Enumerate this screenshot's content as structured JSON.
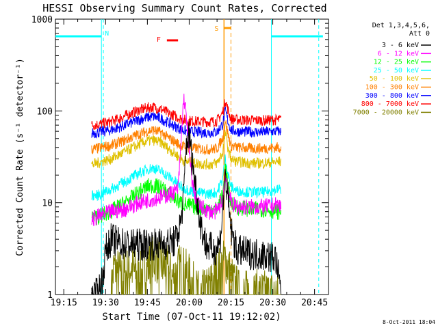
{
  "chart_data": {
    "type": "line",
    "title": "HESSI Observing Summary Count Rates, Corrected",
    "xlabel": "Start Time (07-Oct-11 19:12:02)",
    "ylabel": "Corrected Count Rate (s⁻¹ detector⁻¹)",
    "timestamp": "8-Oct-2011 18:04",
    "x_unit": "minutes after 19:12:02",
    "xlim": [
      0,
      98
    ],
    "ylim": [
      1,
      1000
    ],
    "y_scale": "log",
    "x_ticks": [
      {
        "x": 3,
        "label": "19:15"
      },
      {
        "x": 18,
        "label": "19:30"
      },
      {
        "x": 33,
        "label": "19:45"
      },
      {
        "x": 48,
        "label": "20:00"
      },
      {
        "x": 63,
        "label": "20:15"
      },
      {
        "x": 78,
        "label": "20:30"
      },
      {
        "x": 93,
        "label": "20:45"
      }
    ],
    "y_ticks": [
      {
        "y": 1,
        "label": "1"
      },
      {
        "y": 10,
        "label": "10"
      },
      {
        "y": 100,
        "label": "100"
      },
      {
        "y": 1000,
        "label": "1000"
      }
    ],
    "legend": {
      "position": "right",
      "header": [
        "Det 1,3,4,5,6,",
        "Att 0"
      ]
    },
    "series": [
      {
        "name": "3 - 6 keV",
        "color": "#000000",
        "x": [
          13,
          15,
          17,
          18,
          20,
          25,
          30,
          35,
          40,
          43,
          45,
          46,
          47,
          48,
          49,
          50,
          51,
          52,
          54,
          57,
          59,
          60,
          61,
          62,
          63,
          65,
          70,
          75,
          79,
          81
        ],
        "y": [
          1,
          1,
          1.5,
          3,
          4,
          3.5,
          3.5,
          3.5,
          3.6,
          3.8,
          6,
          12,
          45,
          55,
          30,
          18,
          10,
          6,
          3.5,
          3,
          3.6,
          8,
          20,
          10,
          5,
          3,
          2.8,
          2.7,
          2.5,
          1
        ]
      },
      {
        "name": "6 - 12 keV",
        "color": "#ff00ff",
        "x": [
          13,
          15,
          20,
          25,
          30,
          35,
          40,
          44,
          45,
          46,
          47,
          48,
          49,
          50,
          52,
          55,
          58,
          60,
          61,
          62,
          63,
          65,
          70,
          75,
          80,
          81
        ],
        "y": [
          6.5,
          7,
          8,
          8.5,
          10,
          11,
          12,
          14,
          40,
          140,
          90,
          35,
          18,
          12,
          9,
          8,
          8,
          11,
          21,
          14,
          10,
          9,
          9,
          9,
          9.5,
          9
        ]
      },
      {
        "name": "12 - 25 keV",
        "color": "#00ff00",
        "x": [
          13,
          15,
          20,
          25,
          30,
          33,
          35,
          38,
          40,
          43,
          45,
          47,
          50,
          55,
          58,
          60,
          61,
          62,
          63,
          65,
          70,
          75,
          80,
          81
        ],
        "y": [
          7,
          7,
          8,
          10,
          13,
          15,
          15.5,
          14.5,
          13,
          11,
          10,
          9.5,
          9,
          8.5,
          8.5,
          12,
          24,
          15,
          10,
          9,
          8.5,
          8.5,
          8,
          8
        ]
      },
      {
        "name": "25 - 50 keV",
        "color": "#00ffff",
        "x": [
          13,
          15,
          20,
          25,
          30,
          33,
          35,
          38,
          40,
          43,
          45,
          47,
          50,
          55,
          58,
          60,
          61,
          62,
          63,
          65,
          70,
          75,
          80,
          81
        ],
        "y": [
          12,
          12,
          14,
          17,
          21,
          23,
          24,
          22,
          20,
          17,
          15,
          14,
          13,
          12.5,
          13,
          18,
          32,
          20,
          15,
          13.5,
          13,
          13,
          14,
          14
        ]
      },
      {
        "name": "50 - 100 keV",
        "color": "#e0c000",
        "x": [
          13,
          15,
          20,
          25,
          30,
          33,
          35,
          38,
          40,
          43,
          45,
          47,
          50,
          55,
          58,
          60,
          61,
          62,
          63,
          65,
          70,
          75,
          80,
          81
        ],
        "y": [
          26,
          27,
          30,
          36,
          43,
          47,
          48,
          45,
          40,
          34,
          30,
          28,
          27,
          26,
          27,
          35,
          58,
          38,
          30,
          28,
          27,
          27,
          28,
          28
        ]
      },
      {
        "name": "100 - 300 keV",
        "color": "#ff8000",
        "x": [
          13,
          15,
          20,
          25,
          30,
          33,
          35,
          38,
          40,
          43,
          45,
          47,
          50,
          55,
          58,
          60,
          61,
          62,
          63,
          65,
          70,
          75,
          80,
          81
        ],
        "y": [
          38,
          39,
          42,
          48,
          56,
          60,
          62,
          58,
          52,
          46,
          42,
          40,
          39,
          38,
          39,
          50,
          78,
          54,
          42,
          40,
          39,
          39,
          40,
          40
        ]
      },
      {
        "name": "300 - 800 keV",
        "color": "#0000ff",
        "x": [
          13,
          15,
          20,
          25,
          30,
          33,
          35,
          38,
          40,
          43,
          45,
          47,
          50,
          55,
          58,
          60,
          61,
          62,
          63,
          65,
          70,
          75,
          80,
          81
        ],
        "y": [
          57,
          58,
          62,
          70,
          80,
          85,
          87,
          82,
          76,
          68,
          63,
          60,
          59,
          58,
          59,
          72,
          100,
          76,
          62,
          60,
          59,
          59,
          60,
          60
        ]
      },
      {
        "name": "800 - 7000 keV",
        "color": "#ff0000",
        "x": [
          13,
          15,
          20,
          25,
          30,
          33,
          35,
          38,
          40,
          43,
          45,
          47,
          50,
          55,
          58,
          60,
          61,
          62,
          63,
          65,
          70,
          75,
          80,
          81
        ],
        "y": [
          70,
          71,
          76,
          88,
          102,
          108,
          110,
          104,
          96,
          88,
          82,
          79,
          77,
          76,
          78,
          95,
          132,
          100,
          82,
          80,
          79,
          79,
          80,
          80
        ]
      },
      {
        "name": "7000 - 20000 keV",
        "color": "#808000",
        "x": [
          20,
          21,
          24,
          27,
          30,
          33,
          36,
          39,
          42,
          45,
          48,
          51,
          54,
          57,
          60,
          61,
          62,
          63,
          66,
          69,
          72,
          75,
          78,
          80,
          81
        ],
        "y": [
          1,
          2,
          1.5,
          2,
          1.5,
          2,
          2.5,
          2,
          1.5,
          2,
          1.5,
          1,
          1,
          1.5,
          2,
          2.5,
          2,
          1.5,
          1,
          1,
          1,
          1,
          1,
          1,
          1
        ]
      }
    ],
    "markers": {
      "night_bars": [
        {
          "x0": 0,
          "x1": 16.5,
          "y": 650,
          "label": "N"
        },
        {
          "x0": 77.5,
          "x1": 96,
          "y": 650,
          "label": ""
        }
      ],
      "night_dashed_lines": [
        17.2,
        94.5
      ],
      "night_solid_lines": [
        16.5,
        77.5
      ],
      "flare_bar": {
        "x0": 40,
        "x1": 44,
        "y": 500,
        "label": "F"
      },
      "saa_bar": {
        "x0": 60.5,
        "x1": 63,
        "y": 850,
        "label": "S"
      },
      "saa_lines": {
        "solid": 60.5,
        "dashed": 63
      }
    }
  }
}
